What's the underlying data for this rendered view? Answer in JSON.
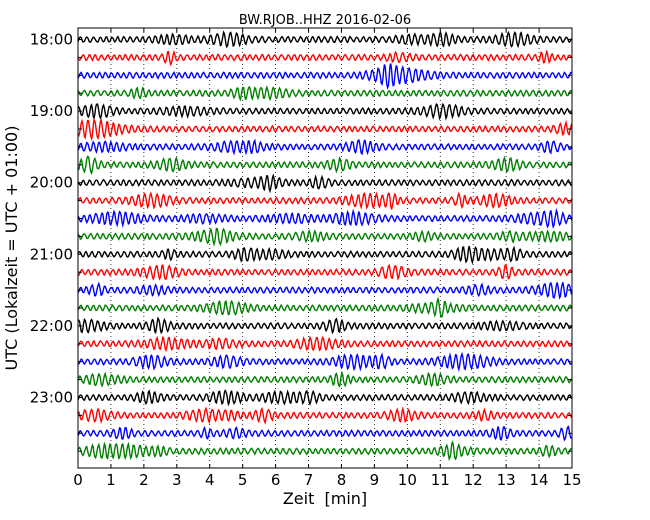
{
  "chart_data": {
    "type": "line",
    "title": "BW.RJOB..HHZ 2016-02-06",
    "xlabel": "Zeit  [min]",
    "ylabel": "UTC (Lokalzeit = UTC + 01:00)",
    "xlim": [
      0,
      15
    ],
    "x_ticks": [
      "0",
      "1",
      "2",
      "3",
      "4",
      "5",
      "6",
      "7",
      "8",
      "9",
      "10",
      "11",
      "12",
      "13",
      "14",
      "15"
    ],
    "y_ticks": [
      "18:00",
      "19:00",
      "20:00",
      "21:00",
      "22:00",
      "23:00"
    ],
    "trace_interval_min": 15,
    "start_hour": "18:00",
    "trace_count": 24,
    "colors": [
      "#000000",
      "#ff0000",
      "#0000ff",
      "#007f00"
    ],
    "grid": "vertical dotted at each minute",
    "legend": "none"
  }
}
